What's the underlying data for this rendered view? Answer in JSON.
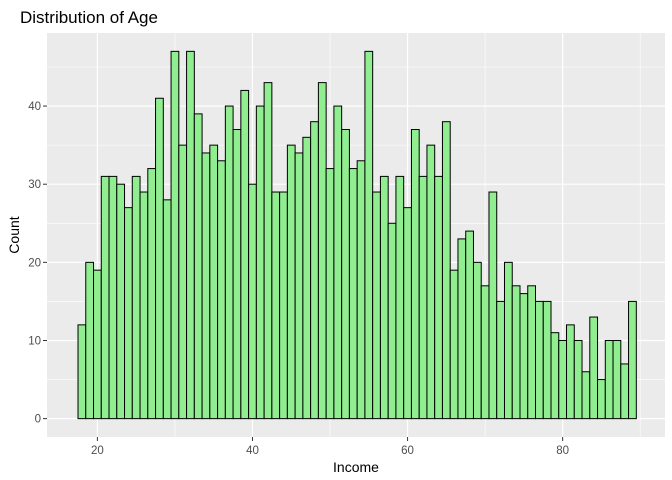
{
  "chart_data": {
    "type": "bar",
    "title": "Distribution of Age",
    "xlabel": "Income",
    "ylabel": "Count",
    "xlim": [
      13.5,
      93.2
    ],
    "ylim": [
      -2.35,
      49.35
    ],
    "x_ticks": [
      20,
      40,
      60,
      80
    ],
    "y_ticks": [
      0,
      10,
      20,
      30,
      40
    ],
    "bin_width": 1,
    "bins_x": [
      18,
      19,
      20,
      21,
      22,
      23,
      24,
      25,
      26,
      27,
      28,
      29,
      30,
      31,
      32,
      33,
      34,
      35,
      36,
      37,
      38,
      39,
      40,
      41,
      42,
      43,
      44,
      45,
      46,
      47,
      48,
      49,
      50,
      51,
      52,
      53,
      54,
      55,
      56,
      57,
      58,
      59,
      60,
      61,
      62,
      63,
      64,
      65,
      66,
      67,
      68,
      69,
      70,
      71,
      72,
      73,
      74,
      75,
      76,
      77,
      78,
      79,
      80,
      81,
      82,
      83,
      84,
      85,
      86,
      87,
      88,
      89
    ],
    "values": [
      12,
      20,
      19,
      31,
      31,
      30,
      27,
      31,
      29,
      32,
      41,
      28,
      47,
      35,
      47,
      39,
      34,
      35,
      33,
      40,
      37,
      42,
      30,
      40,
      43,
      29,
      29,
      35,
      34,
      36,
      38,
      43,
      32,
      40,
      37,
      32,
      33,
      47,
      29,
      31,
      25,
      31,
      27,
      37,
      31,
      35,
      31,
      38,
      19,
      23,
      24,
      20,
      17,
      29,
      15,
      20,
      17,
      16,
      17,
      15,
      15,
      11,
      10,
      12,
      10,
      6,
      13,
      5,
      10,
      10,
      7,
      15
    ],
    "grid": true,
    "legend": "none",
    "colors": {
      "bar_fill": "#90ee90",
      "bar_stroke": "#000000",
      "panel_bg": "#ebebeb",
      "grid_major": "#ffffff",
      "page_bg": "#ffffff",
      "tick_text": "#4d4d4d",
      "tick_mark": "#333333"
    }
  }
}
